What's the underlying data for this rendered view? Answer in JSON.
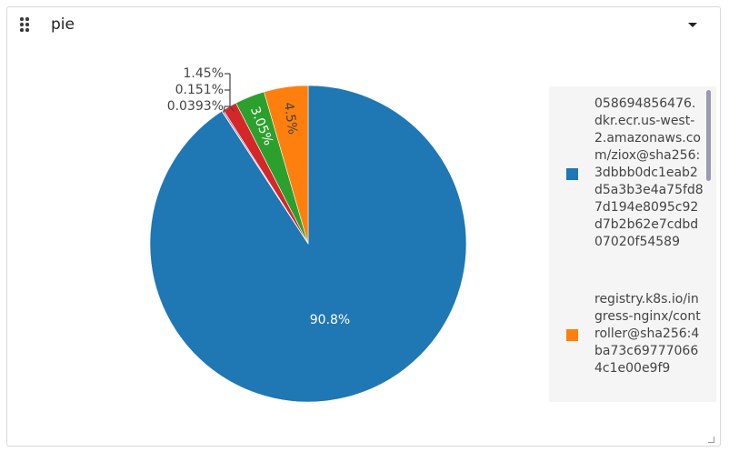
{
  "panel": {
    "title": "pie"
  },
  "icons": {
    "drag": "drag-handle-icon",
    "menu": "chevron-down-icon",
    "resize": "resize-handle-icon"
  },
  "chart_data": {
    "type": "pie",
    "slices": [
      {
        "label": "058694856476.dkr.ecr.us-west-2.amazonaws.com/ziox@sha256:3dbbb0dc1eab2d5a3b3e4a75fd87d194e8095c92d7b2b62e7cdbd07020f54589",
        "percent": 90.8,
        "text": "90.8%",
        "color": "#1f77b4"
      },
      {
        "label": "registry.k8s.io/ingress-nginx/controller@sha256:4ba73c697770664c1e00e9f9",
        "percent": 4.5,
        "text": "4.5%",
        "color": "#ff7f0e"
      },
      {
        "label": "",
        "percent": 3.05,
        "text": "3.05%",
        "color": "#2ca02c"
      },
      {
        "label": "",
        "percent": 1.45,
        "text": "1.45%",
        "color": "#d62728"
      },
      {
        "label": "",
        "percent": 0.151,
        "text": "0.151%",
        "color": "#9467bd"
      },
      {
        "label": "",
        "percent": 0.0393,
        "text": "0.0393%",
        "color": "#8c564b"
      }
    ],
    "direction": "clockwise",
    "start": "top",
    "legend_position": "right"
  },
  "legend": {
    "items": [
      {
        "label": "058694856476.dkr.ecr.us-west-2.amazonaws.com/ziox@sha256:3dbbb0dc1eab2d5a3b3e4a75fd87d194e8095c92d7b2b62e7cdbd07020f54589",
        "color": "#1f77b4"
      },
      {
        "label": "registry.k8s.io/ingress-nginx/controller@sha256:4ba73c697770664c1e00e9f9",
        "color": "#ff7f0e"
      }
    ]
  }
}
